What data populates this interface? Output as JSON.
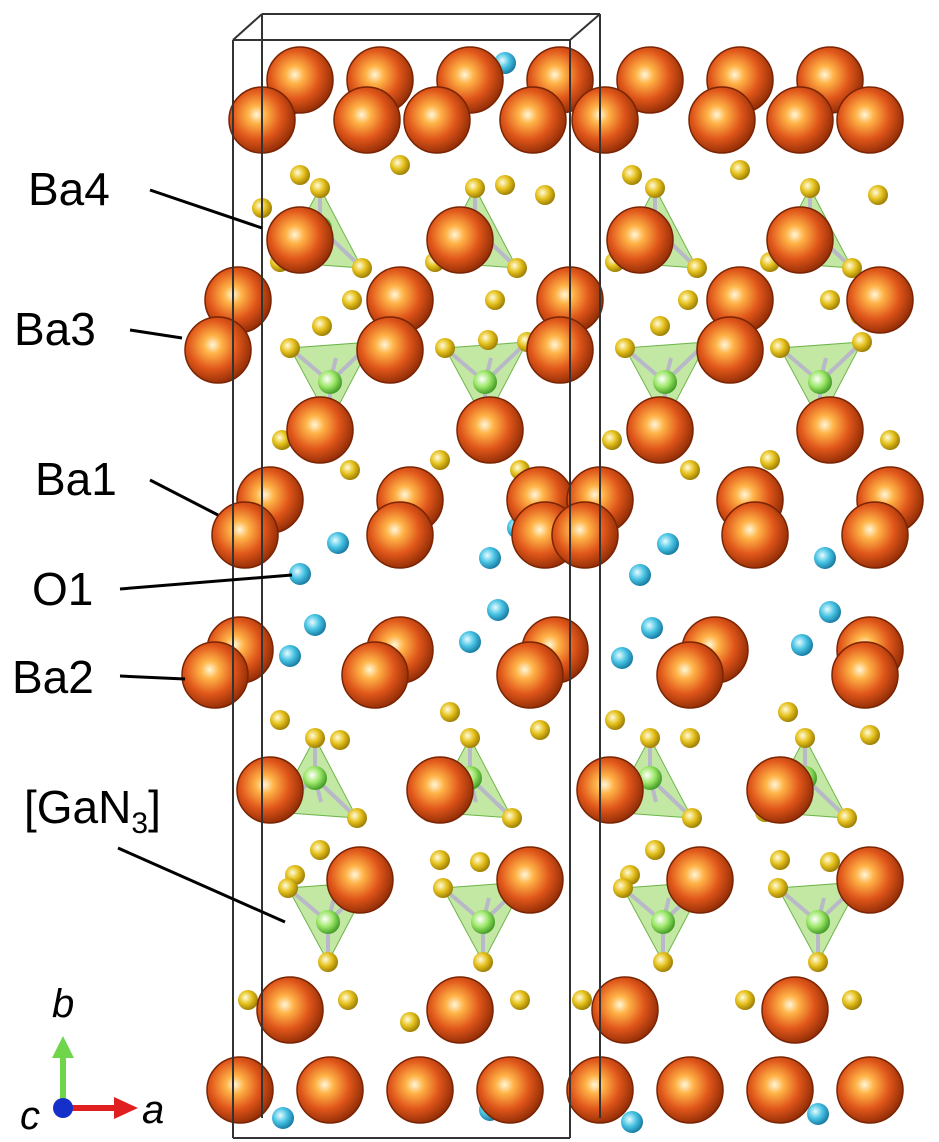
{
  "labels": {
    "ba4": "Ba4",
    "ba3": "Ba3",
    "ba1": "Ba1",
    "o1": "O1",
    "ba2": "Ba2",
    "ganx_main": "[GaN",
    "ganx_sub": "3",
    "ganx_close": "]"
  },
  "axes": {
    "b": "b",
    "a": "a",
    "c": "c"
  },
  "colors": {
    "ba": "#e0561a",
    "ba_dark": "#8c2a05",
    "o": "#49c4e4",
    "n": "#e6c21d",
    "ga": "#9ee86b",
    "polyhedron": "#8fd65a",
    "cell": "#333333",
    "axis_b": "#6fd54b",
    "axis_a": "#e02020",
    "axis_c": "#1530c8"
  }
}
